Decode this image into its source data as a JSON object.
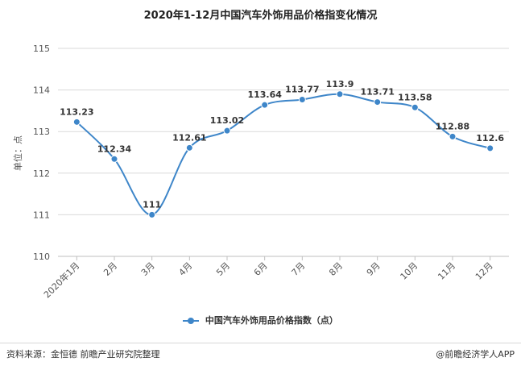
{
  "footer": {
    "source": "资料来源：金恒德 前瞻产业研究院整理",
    "brand": "@前瞻经济学人APP"
  },
  "colors": {
    "series": "#3E86C9",
    "grid": "#d9d9d9"
  },
  "chart_data": {
    "type": "line",
    "title": "2020年1-12月中国汽车外饰用品价格指变化情况",
    "ylabel": "单位：点",
    "xlabel": "",
    "categories": [
      "2020年1月",
      "2月",
      "3月",
      "4月",
      "5月",
      "6月",
      "7月",
      "8月",
      "9月",
      "10月",
      "11月",
      "12月"
    ],
    "series": [
      {
        "name": "中国汽车外饰用品价格指数（点）",
        "values": [
          113.23,
          112.34,
          111,
          112.61,
          113.02,
          113.64,
          113.77,
          113.9,
          113.71,
          113.58,
          112.88,
          112.6
        ],
        "labels": [
          "113.23",
          "112.34",
          "111",
          "112.61",
          "113.02",
          "113.64",
          "113.77",
          "113.9",
          "113.71",
          "113.58",
          "112.88",
          "112.6"
        ]
      }
    ],
    "ylim": [
      110,
      115
    ],
    "yticks": [
      110,
      111,
      112,
      113,
      114,
      115
    ],
    "grid": true,
    "smooth": true,
    "legend": "bottom-center"
  }
}
